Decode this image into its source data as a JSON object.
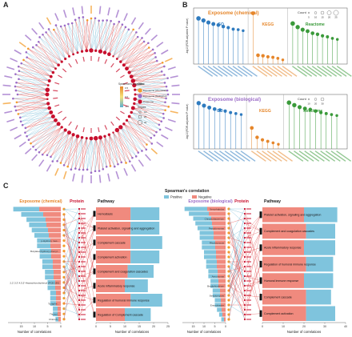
{
  "panels": {
    "a": "A",
    "b": "B",
    "c": "C"
  },
  "panel_a": {
    "legend": {
      "corr_title": "Spearman's correlation",
      "corr_ticks": [
        "0.5",
        "0.0",
        "-0.5"
      ],
      "class_title": "Class",
      "class_items": [
        "Exposome (chemical)",
        "Exposome (biological)",
        "Proteome"
      ],
      "degree_title": "Degree",
      "degree_items": [
        "10",
        "20",
        "30"
      ]
    },
    "colors": {
      "chemical": "#f39c2b",
      "biological": "#9b6cc7",
      "proteome": "#c8102e",
      "pos": "#d62728",
      "neg": "#6fb9d6"
    }
  },
  "panel_b": {
    "chart_data": [
      {
        "type": "lollipop",
        "title": "Exposome (chemical)",
        "ylabel": "-log10(FDR-adjusted P value)",
        "groups": [
          {
            "name": "GO",
            "color": "#2f7bbf",
            "values": [
              8.6,
              8.2,
              7.8,
              7.5,
              7.3,
              7.0,
              6.8,
              6.5,
              6.4,
              6.2
            ]
          },
          {
            "name": "KEGG",
            "color": "#e6862a",
            "values": [
              9.6,
              1.4,
              1.3,
              1.1,
              1.0,
              0.8,
              0.5
            ]
          },
          {
            "name": "Reactome",
            "color": "#3a9a3a",
            "values": [
              7.6,
              6.9,
              6.4,
              6.1,
              5.7,
              5.5,
              5.2,
              5.0,
              4.7,
              4.5
            ]
          }
        ],
        "count_legend": {
          "title": "Count",
          "values": [
            "5",
            "10",
            "15",
            "20",
            "25"
          ]
        }
      },
      {
        "type": "lollipop",
        "title": "Exposome (biological)",
        "ylabel": "-log10(FDR-adjusted P value)",
        "groups": [
          {
            "name": "GO",
            "color": "#2f7bbf",
            "values": [
              8.9,
              8.4,
              8.0,
              7.7,
              7.5,
              7.3,
              7.0,
              6.8,
              6.6
            ]
          },
          {
            "name": "KEGG",
            "color": "#e6862a",
            "values": [
              3.9,
              2.0,
              1.5,
              1.2,
              0.9,
              0.6
            ]
          },
          {
            "name": "Reactome",
            "color": "#3a9a3a",
            "values": [
              9.0,
              8.5,
              8.1,
              7.8,
              7.6,
              7.3,
              7.0,
              6.8,
              6.6,
              6.4
            ]
          }
        ],
        "count_legend": {
          "title": "Count",
          "values": [
            "10",
            "20",
            "30"
          ]
        }
      }
    ]
  },
  "panel_c": {
    "legend": {
      "title": "Spearman's correlation",
      "positive": "Positive",
      "negative": "Negative"
    },
    "chart_data": [
      {
        "type": "bar",
        "side": "left",
        "title": "Exposome (chemical)",
        "xlabel": "Number of correlations",
        "xlim": [
          0,
          20
        ],
        "xticks": [
          "15",
          "10",
          "5",
          "0"
        ],
        "categories": [
          "",
          "",
          "",
          "",
          "",
          "",
          "p-Hydroxy mes...",
          "",
          "Butylated hydroxy phenyl...",
          "",
          "",
          "",
          "",
          "",
          "2,2',3,3',4,5,5'-Heptachlorobiphenyl (PCB 180)",
          "",
          "",
          "",
          "Toxaphe...",
          "",
          "Thioxyl...",
          "Chloroh..."
        ],
        "values": [
          18,
          15,
          13,
          12,
          11,
          10,
          9,
          9,
          8,
          8,
          7,
          7,
          6,
          6,
          5,
          5,
          4,
          4,
          4,
          3,
          3,
          2
        ],
        "label_title_protein": "Protein",
        "label_title_pathway": "Pathway"
      },
      {
        "type": "bar",
        "side": "right",
        "title": "Pathway",
        "xlabel": "Number of correlations",
        "xlim": [
          0,
          25
        ],
        "xticks": [
          "0",
          "5",
          "10",
          "15",
          "20",
          "25"
        ],
        "categories": [
          "Hemostasis",
          "Platelet activation, signaling and aggregation",
          "Complement cascade",
          "Complement activation",
          "Complement and coagulation cascades",
          "Acute inflammatory response",
          "Regulation of humoral immune response",
          "Regulation of Complement cascade"
        ],
        "series": [
          {
            "name": "Negative",
            "values": [
              12,
              12,
              12,
              12,
              11,
              10,
              12,
              10
            ]
          },
          {
            "name": "Positive",
            "values": [
              10,
              10,
              11,
              10,
              9,
              8,
              11,
              9
            ]
          }
        ]
      },
      {
        "type": "bar",
        "side": "left",
        "title": "Exposome (biological)",
        "xlabel": "Number of correlations",
        "xlim": [
          0,
          20
        ],
        "xticks": [
          "15",
          "10",
          "5",
          "0"
        ],
        "categories": [
          "Xenorhabdus",
          "",
          "Chryseobacterium",
          "",
          "Pseudomonas",
          "",
          "",
          "Rhodococcus",
          "",
          "",
          "",
          "",
          "",
          "",
          "Aeromonas",
          "",
          "Bradyrhizobium",
          "",
          "Streptomyces",
          "",
          "Enterobacter",
          "",
          "",
          ""
        ],
        "values": [
          19,
          17,
          15,
          14,
          13,
          12,
          12,
          11,
          11,
          10,
          10,
          9,
          9,
          8,
          8,
          7,
          7,
          6,
          6,
          5,
          5,
          4,
          3,
          2
        ],
        "label_title_protein": "Protein",
        "label_title_pathway": "Pathway"
      },
      {
        "type": "bar",
        "side": "right",
        "title": "Pathway",
        "xlabel": "Number of correlations",
        "xlim": [
          0,
          40
        ],
        "xticks": [
          "0",
          "10",
          "20",
          "30",
          "40"
        ],
        "categories": [
          "Platelet activation, signaling and aggregation",
          "Complement and coagulation cascades",
          "Acute inflammatory response",
          "Regulation of humoral immune response",
          "Humoral immune response",
          "Complement cascade",
          "Complement activation"
        ],
        "series": [
          {
            "name": "Negative",
            "values": [
              20,
              21,
              20,
              21,
              20,
              21,
              21
            ]
          },
          {
            "name": "Positive",
            "values": [
              16,
              14,
              15,
              13,
              14,
              12,
              14
            ]
          }
        ]
      }
    ]
  }
}
